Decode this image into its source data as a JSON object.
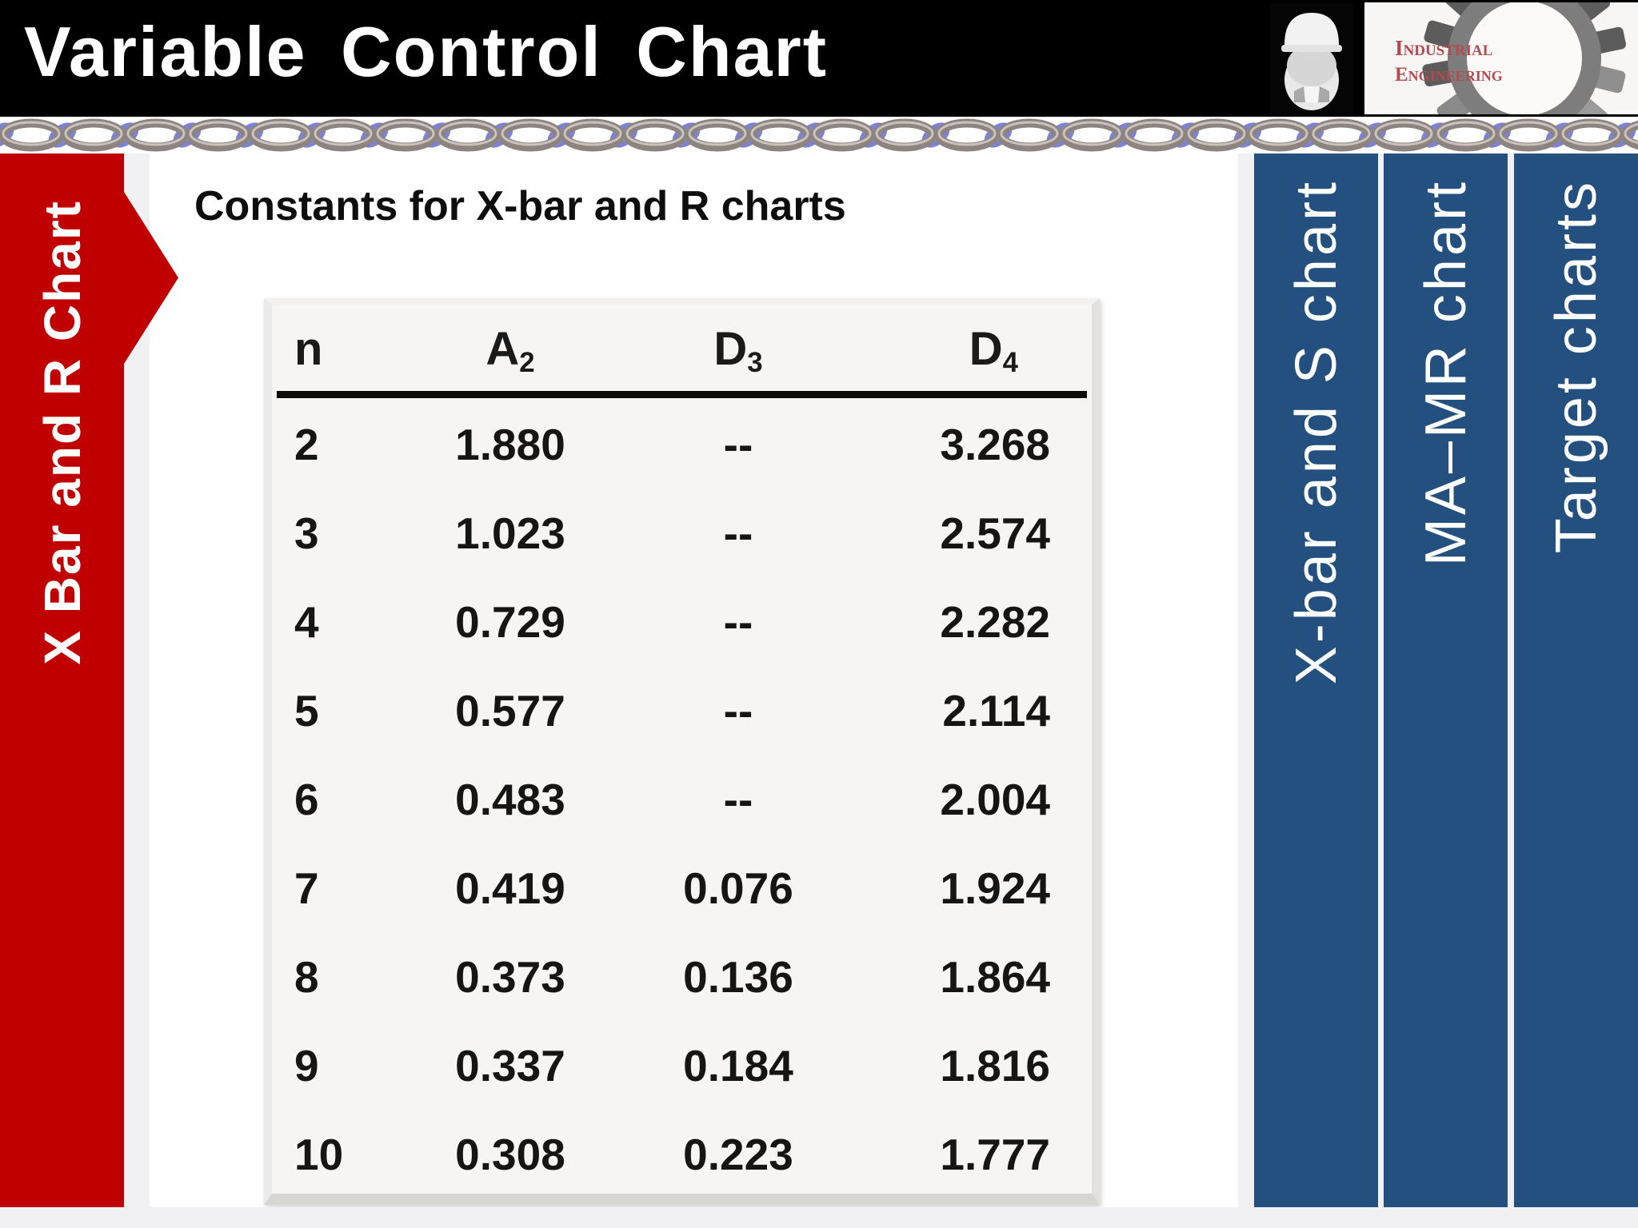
{
  "header": {
    "title": "Variable Control Chart",
    "logo": {
      "line1": "Industrial",
      "line2": "Engineering",
      "text_color": "#b4494f"
    }
  },
  "sidebar_left": {
    "label": "X Bar and R Chart",
    "color": "#c00000"
  },
  "sidebar_right": {
    "color": "#24507f",
    "items": [
      {
        "label": "X-bar and S chart"
      },
      {
        "label": "MA–MR chart"
      },
      {
        "label": "Target charts"
      }
    ]
  },
  "main": {
    "heading": "Constants for X-bar and R charts"
  },
  "chart_data": {
    "type": "table",
    "title": "Constants for X-bar and R charts",
    "columns": [
      {
        "base": "n",
        "sub": ""
      },
      {
        "base": "A",
        "sub": "2"
      },
      {
        "base": "D",
        "sub": "3"
      },
      {
        "base": "D",
        "sub": "4"
      }
    ],
    "rows": [
      [
        "2",
        "1.880",
        "--",
        "3.268"
      ],
      [
        "3",
        "1.023",
        "--",
        "2.574"
      ],
      [
        "4",
        "0.729",
        "--",
        "2.282"
      ],
      [
        "5",
        "0.577",
        "--",
        "2.114"
      ],
      [
        "6",
        "0.483",
        "--",
        "2.004"
      ],
      [
        "7",
        "0.419",
        "0.076",
        "1.924"
      ],
      [
        "8",
        "0.373",
        "0.136",
        "1.864"
      ],
      [
        "9",
        "0.337",
        "0.184",
        "1.816"
      ],
      [
        "10",
        "0.308",
        "0.223",
        "1.777"
      ]
    ]
  },
  "decor": {
    "chain_gray": "#8d8480",
    "chain_highlight": "#c9c2bd",
    "chain_blue": "#7c82d6"
  }
}
